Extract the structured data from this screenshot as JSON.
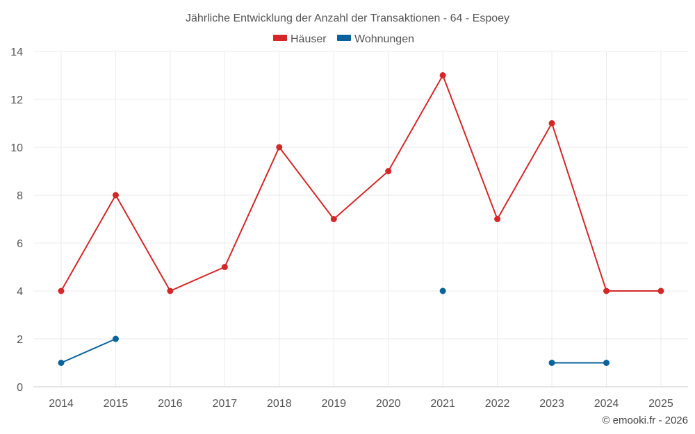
{
  "chart_data": {
    "type": "line",
    "title": "Jährliche Entwicklung der Anzahl der Transaktionen - 64 - Espoey",
    "categories": [
      "2014",
      "2015",
      "2016",
      "2017",
      "2018",
      "2019",
      "2020",
      "2021",
      "2022",
      "2023",
      "2024",
      "2025"
    ],
    "ylim": [
      0,
      14
    ],
    "yticks": [
      0,
      2,
      4,
      6,
      8,
      10,
      12,
      14
    ],
    "grid": true,
    "legend_position": "top-center",
    "series": [
      {
        "name": "Häuser",
        "color": "#d62728",
        "values": [
          4,
          8,
          4,
          5,
          10,
          7,
          9,
          13,
          7,
          11,
          4,
          4
        ]
      },
      {
        "name": "Wohnungen",
        "color": "#08639c",
        "values": [
          1,
          2,
          null,
          null,
          null,
          null,
          null,
          4,
          null,
          1,
          1,
          null
        ]
      }
    ]
  },
  "credit": "© emooki.fr - 2026"
}
